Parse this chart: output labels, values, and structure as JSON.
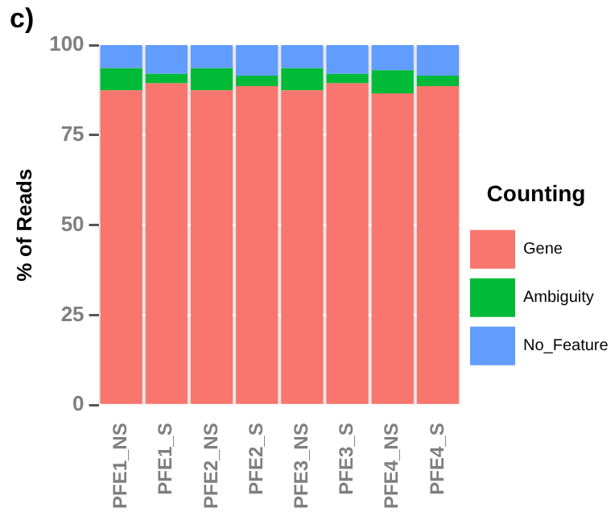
{
  "chart_data": {
    "type": "bar",
    "title": "c)",
    "ylabel": "% of Reads",
    "legend_title": "Counting",
    "categories": [
      "PFE1_NS",
      "PFE1_S",
      "PFE2_NS",
      "PFE2_S",
      "PFE3_NS",
      "PFE3_S",
      "PFE4_NS",
      "PFE4_S"
    ],
    "series": [
      {
        "name": "Gene",
        "color": "#f8766d",
        "values": [
          87.4,
          89.4,
          87.4,
          88.6,
          87.4,
          89.4,
          86.6,
          88.6
        ]
      },
      {
        "name": "Ambiguity",
        "color": "#00ba38",
        "values": [
          6.2,
          2.6,
          6.2,
          2.9,
          6.2,
          2.6,
          6.4,
          2.9
        ]
      },
      {
        "name": "No_Feature",
        "color": "#619cff",
        "values": [
          6.4,
          8.0,
          6.4,
          8.5,
          6.4,
          8.0,
          7.0,
          8.5
        ]
      }
    ],
    "stacked": true,
    "ylim": [
      0,
      100
    ],
    "yticks": [
      0,
      25,
      50,
      75,
      100
    ],
    "grid": "y",
    "legend": "right"
  }
}
